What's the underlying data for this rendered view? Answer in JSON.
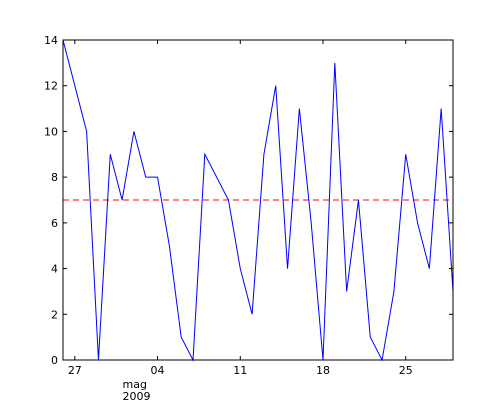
{
  "chart_data": {
    "type": "line",
    "x": [
      "2009-04-26",
      "2009-04-28",
      "2009-04-29",
      "2009-04-30",
      "2009-05-01",
      "2009-05-02",
      "2009-05-03",
      "2009-05-04",
      "2009-05-05",
      "2009-05-06",
      "2009-05-07",
      "2009-05-08",
      "2009-05-10",
      "2009-05-11",
      "2009-05-12",
      "2009-05-13",
      "2009-05-14",
      "2009-05-15",
      "2009-05-16",
      "2009-05-17",
      "2009-05-18",
      "2009-05-19",
      "2009-05-20",
      "2009-05-21",
      "2009-05-22",
      "2009-05-23",
      "2009-05-24",
      "2009-05-25",
      "2009-05-26",
      "2009-05-27",
      "2009-05-28",
      "2009-05-29"
    ],
    "series": [
      {
        "color": "#0000ff",
        "values": [
          14,
          10,
          0,
          9,
          7,
          10,
          8,
          8,
          5,
          1,
          0,
          9,
          7,
          4,
          2,
          9,
          12,
          4,
          11,
          6,
          0,
          13,
          3,
          7,
          1,
          0,
          3,
          9,
          6,
          4,
          11,
          3
        ]
      }
    ],
    "hline": {
      "value": 7,
      "color": "#ff0000",
      "style": "dashed"
    },
    "xlim": [
      "2009-04-26",
      "2009-05-29"
    ],
    "xticks": [
      {
        "value": "2009-04-27",
        "label": "27"
      },
      {
        "value": "2009-05-04",
        "label": "04",
        "sublabel": [
          "mag",
          "2009"
        ]
      },
      {
        "value": "2009-05-11",
        "label": "11"
      },
      {
        "value": "2009-05-18",
        "label": "18"
      },
      {
        "value": "2009-05-25",
        "label": "25"
      }
    ],
    "ylim": [
      0,
      14
    ],
    "yticks": [
      0,
      2,
      4,
      6,
      8,
      10,
      12,
      14
    ],
    "grid": false
  }
}
